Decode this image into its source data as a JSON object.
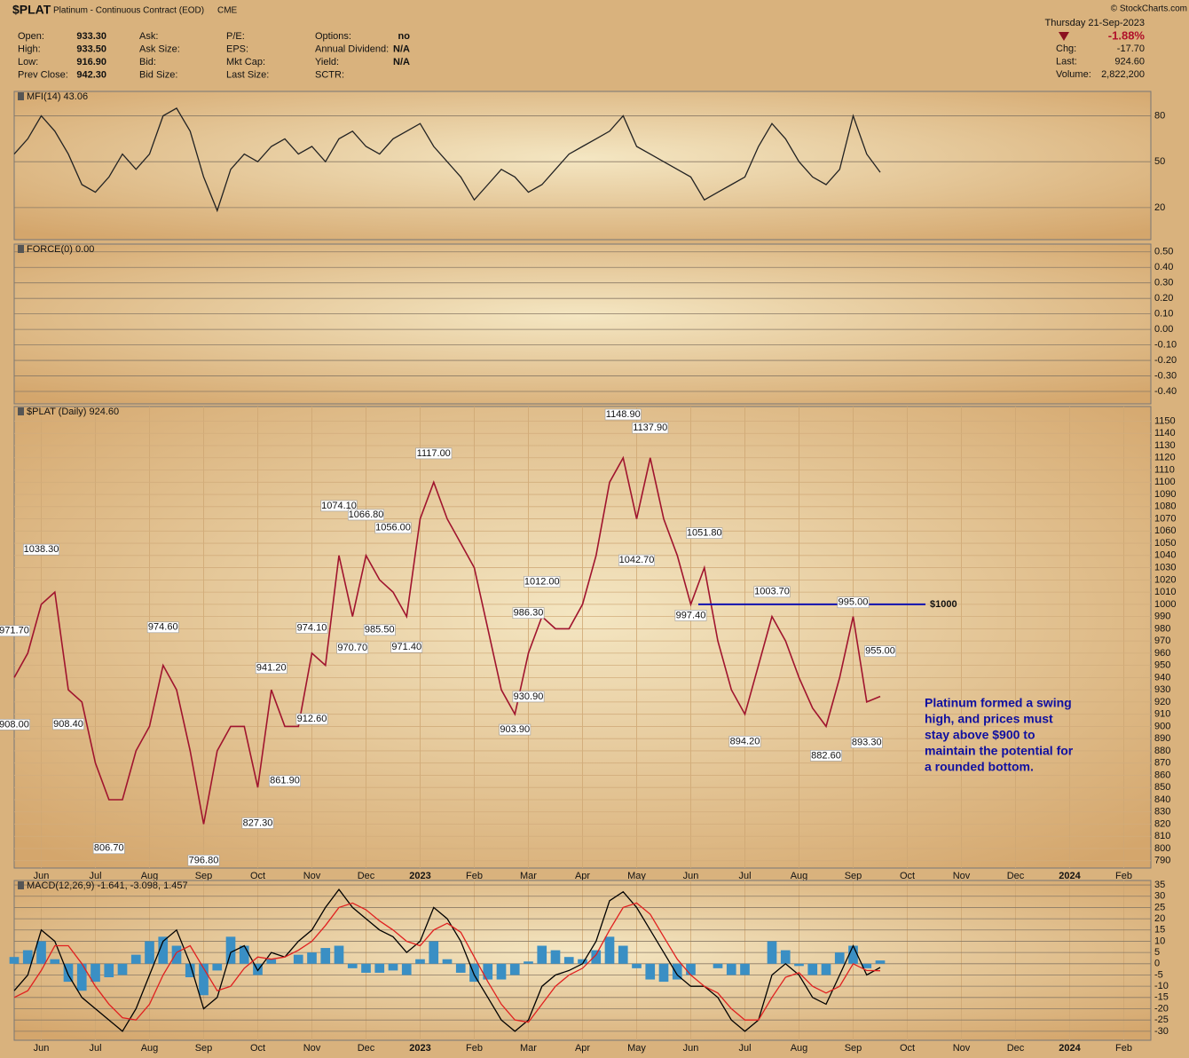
{
  "header": {
    "symbol": "$PLAT",
    "name": "Platinum - Continuous Contract (EOD)",
    "exchange": "CME",
    "watermark": "© StockCharts.com",
    "date": "Thursday 21-Sep-2023",
    "change_pct": "-1.88%",
    "quote": [
      [
        {
          "label": "Open:",
          "value": "933.30"
        },
        {
          "label": "High:",
          "value": "933.50"
        },
        {
          "label": "Low:",
          "value": "916.90"
        },
        {
          "label": "Prev Close:",
          "value": "942.30"
        }
      ],
      [
        {
          "label": "Ask:"
        },
        {
          "label": "Ask Size:"
        },
        {
          "label": "Bid:"
        },
        {
          "label": "Bid Size:"
        }
      ],
      [
        {
          "label": "P/E:"
        },
        {
          "label": "EPS:"
        },
        {
          "label": "Mkt Cap:"
        },
        {
          "label": "Last Size:"
        }
      ],
      [
        {
          "label": "Options:",
          "value": "no"
        },
        {
          "label": "Annual Dividend:",
          "value": "N/A"
        },
        {
          "label": "Yield:",
          "value": "N/A"
        },
        {
          "label": "SCTR:"
        }
      ]
    ],
    "right_quote": [
      {
        "label": "Chg:",
        "value": "-17.70"
      },
      {
        "label": "Last:",
        "value": "924.60"
      },
      {
        "label": "Volume:",
        "value": "2,822,200"
      }
    ]
  },
  "chart_data": [
    {
      "type": "line",
      "title": "MFI(14) 43.06",
      "ylim": [
        -1,
        96
      ],
      "yticks": [
        80,
        50,
        20
      ],
      "series": [
        {
          "color": "#222222",
          "values": [
            55,
            65,
            80,
            70,
            55,
            35,
            30,
            40,
            55,
            45,
            55,
            80,
            85,
            70,
            40,
            18,
            45,
            55,
            50,
            60,
            65,
            55,
            60,
            50,
            65,
            70,
            60,
            55,
            65,
            70,
            75,
            60,
            50,
            40,
            25,
            35,
            45,
            40,
            30,
            35,
            45,
            55,
            60,
            65,
            70,
            80,
            60,
            55,
            50,
            45,
            40,
            25,
            30,
            35,
            40,
            60,
            75,
            65,
            50,
            40,
            35,
            45,
            80,
            55,
            43.06,
            null,
            null,
            null,
            null,
            null,
            null,
            null,
            null,
            null,
            null,
            null,
            null,
            null,
            null,
            null,
            null,
            null,
            null,
            null
          ]
        }
      ]
    },
    {
      "type": "line",
      "title": "FORCE(0) 0.00",
      "ylim": [
        -0.48,
        0.55
      ],
      "yticks": [
        {
          "value": 0.5,
          "label": "0.50"
        },
        {
          "value": 0.4,
          "label": "0.40"
        },
        {
          "value": 0.3,
          "label": "0.30"
        },
        {
          "value": 0.2,
          "label": "0.20"
        },
        {
          "value": 0.1,
          "label": "0.10"
        },
        {
          "value": 0,
          "label": "0.00"
        },
        {
          "value": -0.1,
          "label": "-0.10"
        },
        {
          "value": -0.2,
          "label": "-0.20"
        },
        {
          "value": -0.3,
          "label": "-0.30"
        },
        {
          "value": -0.4,
          "label": "-0.40"
        }
      ]
    },
    {
      "type": "line",
      "title": "$PLAT (Daily) 924.60",
      "ylim": [
        784,
        1162
      ],
      "yticks": [
        790,
        800,
        810,
        820,
        830,
        840,
        850,
        860,
        870,
        880,
        890,
        900,
        910,
        920,
        930,
        940,
        950,
        960,
        970,
        980,
        990,
        1000,
        1010,
        1020,
        1030,
        1040,
        1050,
        1060,
        1070,
        1080,
        1090,
        1100,
        1110,
        1120,
        1130,
        1140,
        1150
      ],
      "categories": [
        null,
        null,
        "Jun",
        null,
        null,
        null,
        "Jul",
        null,
        null,
        null,
        "Aug",
        null,
        null,
        null,
        "Sep",
        null,
        null,
        null,
        "Oct",
        null,
        null,
        null,
        "Nov",
        null,
        null,
        null,
        "Dec",
        null,
        null,
        null,
        "2023",
        null,
        null,
        null,
        "Feb",
        null,
        null,
        null,
        "Mar",
        null,
        null,
        null,
        "Apr",
        null,
        null,
        null,
        "May",
        null,
        null,
        null,
        "Jun",
        null,
        null,
        null,
        "Jul",
        null,
        null,
        null,
        "Aug",
        null,
        null,
        null,
        "Sep",
        null,
        null,
        null,
        "Oct",
        null,
        null,
        null,
        "Nov",
        null,
        null,
        null,
        "Dec",
        null,
        null,
        null,
        "2024",
        null,
        null,
        null,
        "Feb",
        null
      ],
      "series": [
        {
          "color": "#a0142e",
          "values": [
            940,
            960,
            1000,
            1010,
            930,
            920,
            870,
            840,
            840,
            880,
            900,
            950,
            930,
            880,
            820,
            880,
            900,
            900,
            850,
            930,
            900,
            900,
            960,
            950,
            1040,
            990,
            1040,
            1020,
            1010,
            990,
            1070,
            1100,
            1070,
            1050,
            1030,
            980,
            930,
            910,
            960,
            990,
            980,
            980,
            1000,
            1040,
            1100,
            1120,
            1070,
            1120,
            1070,
            1040,
            1000,
            1030,
            970,
            930,
            910,
            950,
            990,
            970,
            940,
            915,
            900,
            940,
            990,
            920,
            924.6,
            null,
            null,
            null,
            null,
            null,
            null,
            null,
            null,
            null,
            null,
            null,
            null,
            null,
            null,
            null,
            null,
            null,
            null,
            null
          ]
        }
      ],
      "price_labels": [
        {
          "label": "971.70",
          "value": 971.7,
          "at": 0
        },
        {
          "label": "908.00",
          "value": 908,
          "at": 0
        },
        {
          "label": "1038.30",
          "value": 1038.3,
          "at": 2
        },
        {
          "label": "908.40",
          "value": 908.4,
          "at": 4
        },
        {
          "label": "806.70",
          "value": 806.7,
          "at": 7
        },
        {
          "label": "974.60",
          "value": 974.6,
          "at": 11
        },
        {
          "label": "796.80",
          "value": 796.8,
          "at": 14
        },
        {
          "label": "827.30",
          "value": 827.3,
          "at": 18
        },
        {
          "label": "941.20",
          "value": 941.2,
          "at": 19
        },
        {
          "label": "861.90",
          "value": 861.9,
          "at": 20
        },
        {
          "label": "912.60",
          "value": 912.6,
          "at": 22
        },
        {
          "label": "974.10",
          "value": 974.1,
          "at": 22
        },
        {
          "label": "1074.10",
          "value": 1074.1,
          "at": 24
        },
        {
          "label": "970.70",
          "value": 970.7,
          "at": 25
        },
        {
          "label": "1066.80",
          "value": 1066.8,
          "at": 26
        },
        {
          "label": "985.50",
          "value": 985.5,
          "at": 27
        },
        {
          "label": "1056.00",
          "value": 1056,
          "at": 28
        },
        {
          "label": "971.40",
          "value": 971.4,
          "at": 29
        },
        {
          "label": "1117.00",
          "value": 1117,
          "at": 31
        },
        {
          "label": "903.90",
          "value": 903.9,
          "at": 37
        },
        {
          "label": "930.90",
          "value": 930.9,
          "at": 38
        },
        {
          "label": "986.30",
          "value": 986.3,
          "at": 38
        },
        {
          "label": "1012.00",
          "value": 1012,
          "at": 39
        },
        {
          "label": "1148.90",
          "value": 1148.9,
          "at": 45
        },
        {
          "label": "1042.70",
          "value": 1042.7,
          "at": 46
        },
        {
          "label": "1137.90",
          "value": 1137.9,
          "at": 47
        },
        {
          "label": "997.40",
          "value": 997.4,
          "at": 50
        },
        {
          "label": "1051.80",
          "value": 1051.8,
          "at": 51
        },
        {
          "label": "894.20",
          "value": 894.2,
          "at": 54
        },
        {
          "label": "1003.70",
          "value": 1003.7,
          "at": 56
        },
        {
          "label": "882.60",
          "value": 882.6,
          "at": 60
        },
        {
          "label": "995.00",
          "value": 995,
          "at": 62
        },
        {
          "label": "893.30",
          "value": 893.3,
          "at": 63
        },
        {
          "label": "955.00",
          "value": 955,
          "at": 64
        }
      ],
      "level": {
        "label": "$1000",
        "value": 1000,
        "color": "#1010b0"
      },
      "callout": [
        "Platinum formed a swing",
        "high, and prices must",
        "stay above $900 to",
        "maintain the potential for",
        "a rounded bottom."
      ]
    },
    {
      "type": "line",
      "title": "MACD(12,26,9) -1.641, -3.098, 1.457",
      "ylim": [
        -34,
        37
      ],
      "yticks": [
        35,
        30,
        25,
        20,
        15,
        10,
        5,
        0,
        -5,
        -10,
        -15,
        -20,
        -25,
        -30
      ],
      "categories": [
        null,
        null,
        "Jun",
        null,
        null,
        null,
        "Jul",
        null,
        null,
        null,
        "Aug",
        null,
        null,
        null,
        "Sep",
        null,
        null,
        null,
        "Oct",
        null,
        null,
        null,
        "Nov",
        null,
        null,
        null,
        "Dec",
        null,
        null,
        null,
        "2023",
        null,
        null,
        null,
        "Feb",
        null,
        null,
        null,
        "Mar",
        null,
        null,
        null,
        "Apr",
        null,
        null,
        null,
        "May",
        null,
        null,
        null,
        "Jun",
        null,
        null,
        null,
        "Jul",
        null,
        null,
        null,
        "Aug",
        null,
        null,
        null,
        "Sep",
        null,
        null,
        null,
        "Oct",
        null,
        null,
        null,
        "Nov",
        null,
        null,
        null,
        "Dec",
        null,
        null,
        null,
        "2024",
        null,
        null,
        null,
        "Feb",
        null
      ],
      "series": [
        {
          "type": "bar",
          "color": "#3a8fc4",
          "values": [
            3,
            6,
            10,
            2,
            -8,
            -12,
            -8,
            -6,
            -5,
            4,
            10,
            12,
            8,
            -6,
            -14,
            -3,
            12,
            8,
            -5,
            2,
            0,
            4,
            5,
            7,
            8,
            -2,
            -4,
            -4,
            -3,
            -5,
            2,
            10,
            2,
            -4,
            -8,
            -7,
            -7,
            -5,
            1,
            8,
            6,
            3,
            2,
            6,
            12,
            8,
            -2,
            -7,
            -8,
            -7,
            -5,
            0,
            -2,
            -5,
            -5,
            0,
            10,
            6,
            -1,
            -5,
            -5,
            5,
            8,
            -2,
            1.457,
            null,
            null,
            null,
            null,
            null,
            null,
            null,
            null,
            null,
            null,
            null,
            null,
            null,
            null,
            null,
            null,
            null,
            null,
            null
          ]
        },
        {
          "color": "#000000",
          "values": [
            -12,
            -5,
            15,
            10,
            -5,
            -15,
            -20,
            -25,
            -30,
            -20,
            -5,
            10,
            15,
            0,
            -20,
            -15,
            5,
            8,
            -3,
            5,
            3,
            10,
            15,
            25,
            33,
            25,
            20,
            15,
            12,
            5,
            10,
            25,
            20,
            10,
            -5,
            -15,
            -25,
            -30,
            -25,
            -10,
            -5,
            -3,
            0,
            10,
            28,
            32,
            25,
            15,
            5,
            -5,
            -10,
            -10,
            -15,
            -25,
            -30,
            -25,
            -5,
            0,
            -5,
            -15,
            -18,
            -5,
            8,
            -5,
            -1.641,
            null,
            null,
            null,
            null,
            null,
            null,
            null,
            null,
            null,
            null,
            null,
            null,
            null,
            null,
            null,
            null,
            null,
            null,
            null
          ]
        },
        {
          "color": "#e02020",
          "values": [
            -15,
            -12,
            -3,
            8,
            8,
            0,
            -10,
            -18,
            -24,
            -25,
            -18,
            -5,
            5,
            8,
            -2,
            -12,
            -10,
            -2,
            3,
            2,
            3,
            6,
            10,
            17,
            25,
            27,
            24,
            19,
            15,
            10,
            8,
            15,
            18,
            14,
            3,
            -8,
            -18,
            -25,
            -26,
            -18,
            -10,
            -5,
            -2,
            4,
            15,
            25,
            27,
            22,
            12,
            2,
            -5,
            -10,
            -13,
            -20,
            -25,
            -25,
            -15,
            -6,
            -4,
            -10,
            -13,
            -10,
            0,
            -3,
            -3.098,
            null,
            null,
            null,
            null,
            null,
            null,
            null,
            null,
            null,
            null,
            null,
            null,
            null,
            null,
            null,
            null,
            null,
            null,
            null
          ]
        }
      ]
    }
  ]
}
